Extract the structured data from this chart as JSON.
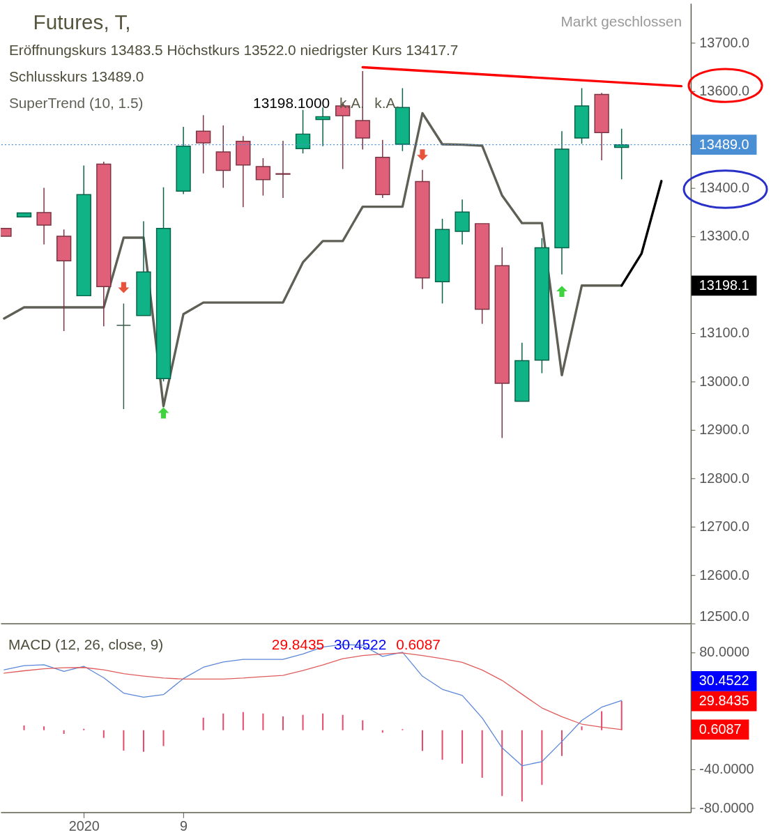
{
  "chart_data": [
    {
      "type": "candlestick",
      "title": "Futures, T,",
      "annotations": [
        "Markt geschlossen",
        "Eröffnungskurs 13483.5 Höchstkurs 13522.0 niedrigster Kurs 13417.7",
        "Schlusskurs 13489.0",
        "13198.1000",
        "k.A.",
        "k.A.",
        "13198.1"
      ],
      "categories": [
        null,
        null,
        null,
        null,
        "2020",
        null,
        null,
        null,
        null,
        "9",
        null,
        null,
        null,
        null,
        null,
        null,
        null,
        null,
        null,
        null,
        null,
        null,
        null,
        null,
        null,
        null,
        null,
        null,
        null,
        null,
        null,
        null,
        null,
        null,
        null
      ],
      "ohlc": [
        [
          13316,
          13316,
          13300,
          13300
        ],
        [
          13340,
          13348,
          13340,
          13348
        ],
        [
          13349,
          13400,
          13283,
          13323
        ],
        [
          13300,
          13314,
          13104,
          13249
        ],
        [
          13177,
          13446,
          13177,
          13386
        ],
        [
          13449,
          13454,
          13114,
          13196
        ],
        [
          13116,
          13161,
          12943,
          13116
        ],
        [
          13136,
          13331,
          13136,
          13226
        ],
        [
          13006,
          13401,
          13000,
          13316
        ],
        [
          13393,
          13526,
          13387,
          13486
        ],
        [
          13517,
          13550,
          13430,
          13493
        ],
        [
          13474,
          13529,
          13400,
          13436
        ],
        [
          13496,
          13507,
          13360,
          13447
        ],
        [
          13444,
          13461,
          13384,
          13417
        ],
        [
          13429,
          13497,
          13379,
          13428
        ],
        [
          13481,
          13561,
          13471,
          13511
        ],
        [
          13541,
          13566,
          13486,
          13547
        ],
        [
          13569,
          13577,
          13439,
          13549
        ],
        [
          13539,
          13641,
          13479,
          13503
        ],
        [
          13463,
          13499,
          13379,
          13386
        ],
        [
          13490,
          13606,
          13476,
          13566
        ],
        [
          13413,
          13437,
          13191,
          13214
        ],
        [
          13206,
          13336,
          13161,
          13314
        ],
        [
          13310,
          13376,
          13283,
          13350
        ],
        [
          13326,
          13326,
          13119,
          13149
        ],
        [
          13239,
          13277,
          12883,
          12996
        ],
        [
          12959,
          13080,
          12959,
          13043
        ],
        [
          13044,
          13296,
          13017,
          13276
        ],
        [
          13276,
          13517,
          13221,
          13480
        ],
        [
          13503,
          13606,
          13491,
          13569
        ],
        [
          13593,
          13596,
          13457,
          13514
        ],
        [
          13483.5,
          13522.0,
          13417.7,
          13489.0
        ],
        null,
        null,
        null
      ],
      "colors": [
        "#e0607a",
        "#0fb386",
        "#e0607a",
        "#e0607a",
        "#0fb386",
        "#e0607a",
        "#3a5a4a",
        "#0fb386",
        "#0fb386",
        "#0fb386",
        "#e0607a",
        "#e0607a",
        "#e0607a",
        "#e0607a",
        "#e0607a",
        "#0fb386",
        "#0fb386",
        "#e0607a",
        "#e0607a",
        "#e0607a",
        "#0fb386",
        "#e0607a",
        "#0fb386",
        "#0fb386",
        "#e0607a",
        "#e0607a",
        "#0fb386",
        "#0fb386",
        "#0fb386",
        "#0fb386",
        "#e0607a",
        "#0fb386",
        null,
        null,
        null
      ],
      "series": [
        {
          "name": "SuperTrend (10, 1.5)",
          "type": "line",
          "color": "#5f5f55",
          "values": [
            13130,
            13153,
            13153,
            13153,
            13153,
            13153,
            13297,
            13297,
            12949,
            13139,
            13163,
            13163,
            13163,
            13163,
            13163,
            13246,
            13290,
            13290,
            13361,
            13361,
            13361,
            13554,
            13490,
            13489,
            13487,
            13384,
            13327,
            13327,
            13013,
            13198,
            13198,
            13198,
            null,
            null,
            null
          ]
        },
        {
          "type": "line",
          "color": "#000000",
          "values": [
            null,
            null,
            null,
            null,
            null,
            null,
            null,
            null,
            null,
            null,
            null,
            null,
            null,
            null,
            null,
            null,
            null,
            null,
            null,
            null,
            null,
            null,
            null,
            null,
            null,
            null,
            null,
            null,
            null,
            null,
            null,
            13198,
            13264,
            13414,
            null
          ]
        },
        {
          "type": "line",
          "color": "#ff0000",
          "values": [
            null,
            null,
            null,
            null,
            null,
            null,
            null,
            null,
            null,
            null,
            null,
            null,
            null,
            null,
            null,
            null,
            null,
            null,
            13649,
            null,
            null,
            null,
            null,
            null,
            null,
            null,
            null,
            null,
            null,
            null,
            null,
            null,
            null,
            null,
            13610
          ]
        },
        {
          "type": "scatter",
          "marker": "triangle",
          "color": "#e8533c",
          "values": [
            null,
            null,
            null,
            null,
            null,
            null,
            13194,
            null,
            null,
            null,
            null,
            null,
            null,
            null,
            null,
            null,
            null,
            null,
            null,
            null,
            null,
            13468,
            null,
            null,
            null,
            null,
            null,
            null,
            null,
            null,
            null,
            null,
            null,
            null,
            null
          ]
        },
        {
          "type": "scatter",
          "marker": "triangle",
          "color": "#3fd43f",
          "values": [
            null,
            null,
            null,
            null,
            null,
            null,
            null,
            null,
            12935,
            null,
            null,
            null,
            null,
            null,
            null,
            null,
            null,
            null,
            null,
            null,
            null,
            null,
            null,
            null,
            null,
            null,
            null,
            null,
            13186,
            null,
            null,
            null,
            null,
            null,
            null
          ]
        }
      ],
      "ylim": [
        12500,
        13781
      ],
      "yticks": [
        {
          "value": 13700,
          "label": "13700.0"
        },
        {
          "value": 13600,
          "label": "13600.0"
        },
        {
          "value": 13400,
          "label": "13400.0"
        },
        {
          "value": 13300,
          "label": "13300.0"
        },
        {
          "value": 13100,
          "label": "13100.0"
        },
        {
          "value": 13000,
          "label": "13000.0"
        },
        {
          "value": 12900,
          "label": "12900.0"
        },
        {
          "value": 12800,
          "label": "12800.0"
        },
        {
          "value": 12700,
          "label": "12700.0"
        },
        {
          "value": 12600,
          "label": "12600.0"
        },
        {
          "value": 12500,
          "label": "12500.0"
        }
      ],
      "ref_lines": [
        {
          "axis": "y",
          "value": 13489.0,
          "label": "13489.0",
          "color": "#4a8fd4",
          "line_style": "dotted"
        }
      ],
      "tick_labels": "y"
    },
    {
      "type": "line",
      "title": "MACD (12, 26, close, 9)",
      "annotations": [
        "29.8435",
        "30.4522",
        "0.6087",
        "29.8435",
        "30.4522",
        "0.6087"
      ],
      "categories": [
        null,
        null,
        null,
        null,
        "2020",
        null,
        null,
        null,
        null,
        "9",
        null,
        null,
        null,
        null,
        null,
        null,
        null,
        null,
        null,
        null,
        null,
        null,
        null,
        null,
        null,
        null,
        null,
        null,
        null,
        null,
        null,
        null,
        null,
        null,
        null
      ],
      "series": [
        {
          "type": "bar",
          "color": "#e4486a",
          "values": [
            null,
            4.8,
            3.8,
            -3.8,
            1.3,
            -7.9,
            -21.0,
            -22.3,
            -16.3,
            null,
            12.9,
            17.2,
            18.5,
            17.2,
            14.1,
            15.7,
            17.2,
            15.7,
            10.1,
            -2.5,
            1.0,
            -21.3,
            -30.5,
            -34.4,
            -48.9,
            -67.7,
            -73.3,
            -56.2,
            -26.6,
            3.8,
            19.5,
            29.8,
            null,
            null,
            null
          ]
        },
        {
          "type": "line",
          "color": "#5b87d9",
          "values": [
            61.9,
            66.3,
            67.2,
            60.3,
            65.6,
            53.8,
            38.0,
            33.9,
            36.5,
            53.0,
            64.6,
            70.0,
            72.7,
            72.7,
            72.7,
            78.3,
            85.4,
            88.0,
            87.2,
            75.8,
            80.0,
            55.4,
            42.0,
            35.7,
            12.6,
            -18.2,
            -36.6,
            -32.3,
            -11.8,
            10.0,
            23.6,
            30.5,
            null,
            null,
            null
          ]
        },
        {
          "type": "line",
          "color": "#e05c5c",
          "values": [
            58.5,
            61.0,
            63.1,
            64.1,
            64.4,
            61.9,
            58.0,
            55.6,
            53.5,
            52.5,
            52.5,
            52.5,
            53.5,
            55.0,
            56.3,
            61.3,
            67.0,
            73.4,
            76.6,
            78.3,
            79.3,
            76.7,
            73.4,
            69.7,
            61.8,
            51.1,
            36.9,
            22.8,
            13.8,
            6.2,
            3.1,
            0.6,
            null,
            null,
            null
          ]
        }
      ],
      "ylim": [
        -84.3,
        108.9
      ],
      "yticks": [
        {
          "value": 80,
          "label": "80.0000"
        },
        {
          "value": -40,
          "label": "-40.0000"
        },
        {
          "value": -80,
          "label": "-80.0000"
        }
      ]
    }
  ]
}
